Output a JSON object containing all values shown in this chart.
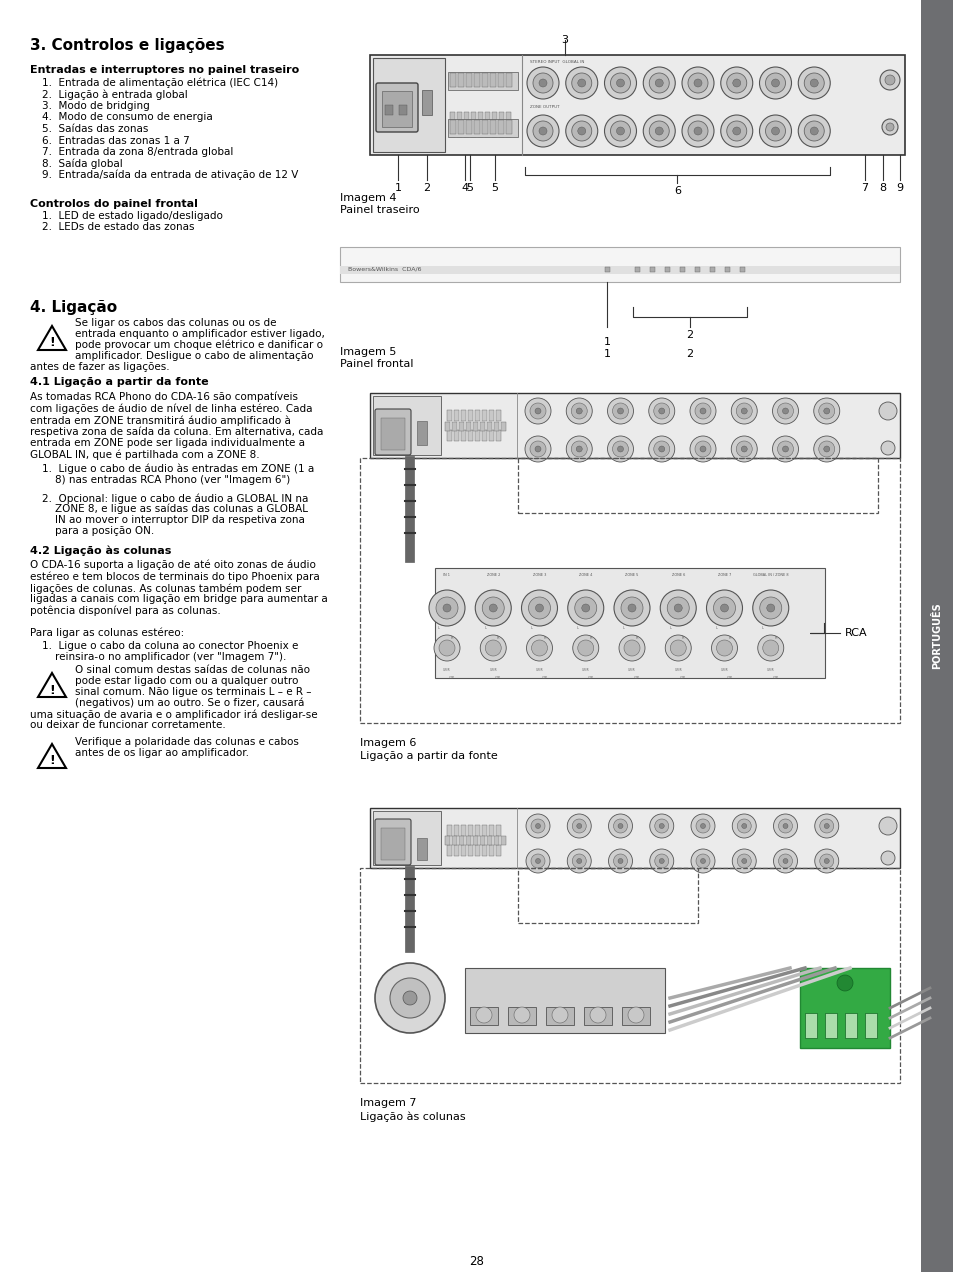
{
  "title_section3": "3. Controlos e ligações",
  "subtitle_back": "Entradas e interruptores no painel traseiro",
  "back_panel_items": [
    "1.  Entrada de alimentação elétrica (IEC C14)",
    "2.  Ligação à entrada global",
    "3.  Modo de bridging",
    "4.  Modo de consumo de energia",
    "5.  Saídas das zonas",
    "6.  Entradas das zonas 1 a 7",
    "7.  Entrada da zona 8/entrada global",
    "8.  Saída global",
    "9.  Entrada/saída da entrada de ativação de 12 V"
  ],
  "subtitle_front": "Controlos do painel frontal",
  "front_panel_items": [
    "1.  LED de estado ligado/desligado",
    "2.  LEDs de estado das zonas"
  ],
  "title_section4": "4. Ligação",
  "warning1_line1": "Se ligar os cabos das colunas ou os de",
  "warning1_line2": "entrada enquanto o amplificador estiver ligado,",
  "warning1_line3": "pode provocar um choque elétrico e danificar o",
  "warning1_line4": "amplificador. Desligue o cabo de alimentação",
  "warning1_cont": "antes de fazer as ligações.",
  "subtitle_41": "4.1 Ligação a partir da fonte",
  "text_41_lines": [
    "As tomadas RCA Phono do CDA-16 são compatíveis",
    "com ligações de áudio de nível de linha estéreo. Cada",
    "entrada em ZONE transmitirá áudio amplificado à",
    "respetiva zona de saída da coluna. Em alternativa, cada",
    "entrada em ZONE pode ser ligada individualmente a",
    "GLOBAL IN, que é partilhada com a ZONE 8."
  ],
  "list_41_1a": "1.  Ligue o cabo de áudio às entradas em ZONE (1 a",
  "list_41_1b": "    8) nas entradas RCA Phono (ver \"Imagem 6\")",
  "list_41_2a": "2.  Opcional: ligue o cabo de áudio a GLOBAL IN na",
  "list_41_2b": "    ZONE 8, e ligue as saídas das colunas a GLOBAL",
  "list_41_2c": "    IN ao mover o interruptor DIP da respetiva zona",
  "list_41_2d": "    para a posição ON.",
  "subtitle_42": "4.2 Ligação às colunas",
  "text_42_lines": [
    "O CDA-16 suporta a ligação de até oito zonas de áudio",
    "estéreo e tem blocos de terminais do tipo Phoenix para",
    "ligações de colunas. As colunas também podem ser",
    "ligadas a canais com ligação em bridge para aumentar a",
    "potência disponível para as colunas."
  ],
  "text_42b": "Para ligar as colunas estéreo:",
  "list_42_1a": "1.  Ligue o cabo da coluna ao conector Phoenix e",
  "list_42_1b": "    reinsira-o no amplificador (ver \"Imagem 7\").",
  "warning2_line1": "O sinal comum destas saídas de colunas não",
  "warning2_line2": "pode estar ligado com ou a qualquer outro",
  "warning2_line3": "sinal comum. Não ligue os terminais L – e R –",
  "warning2_line4": "(negativos) um ao outro. Se o fizer, causará",
  "warning2_cont1": "uma situação de avaria e o amplificador irá desligar-se",
  "warning2_cont2": "ou deixar de funcionar corretamente.",
  "warning3_line1": "Verifique a polaridade das colunas e cabos",
  "warning3_line2": "antes de os ligar ao amplificador.",
  "page_number": "28",
  "sidebar_text": "PORTUGUÊS",
  "bg_color": "#ffffff",
  "sidebar_color": "#6d6e71"
}
